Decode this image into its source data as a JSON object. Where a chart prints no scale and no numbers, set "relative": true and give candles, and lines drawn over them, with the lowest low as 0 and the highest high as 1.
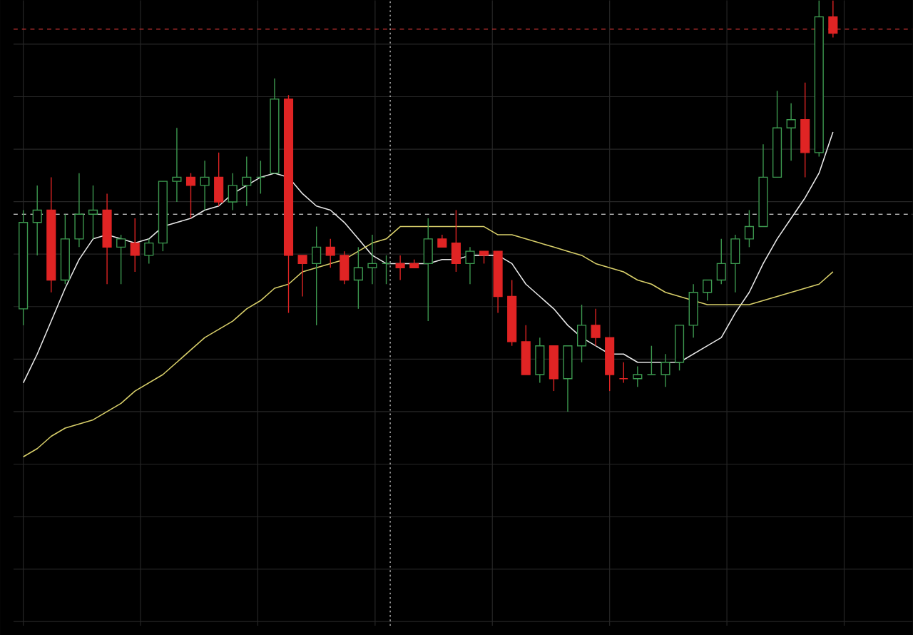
{
  "chart_data": {
    "type": "candlestick",
    "relative": true,
    "grid": true,
    "categories": [
      null,
      null,
      null,
      null,
      null,
      null,
      null,
      null,
      null,
      null,
      null,
      null,
      null,
      null,
      null,
      null,
      null,
      null,
      null,
      null,
      null,
      null,
      null,
      null,
      null,
      null,
      null,
      null,
      null,
      null,
      null,
      null,
      null,
      null,
      null,
      null,
      null,
      null,
      null,
      null,
      null,
      null,
      null,
      null,
      null,
      null,
      null,
      null,
      null,
      null,
      null,
      null,
      null,
      null,
      null,
      null,
      null,
      null,
      null
    ],
    "ohlc": [
      [
        0.25,
        0.49,
        0.21,
        0.46
      ],
      [
        0.46,
        0.55,
        0.38,
        0.49
      ],
      [
        0.49,
        0.57,
        0.29,
        0.32
      ],
      [
        0.32,
        0.48,
        0.31,
        0.42
      ],
      [
        0.42,
        0.58,
        0.4,
        0.48
      ],
      [
        0.48,
        0.55,
        0.42,
        0.49
      ],
      [
        0.49,
        0.53,
        0.31,
        0.4
      ],
      [
        0.4,
        0.43,
        0.31,
        0.42
      ],
      [
        0.41,
        0.47,
        0.34,
        0.38
      ],
      [
        0.38,
        0.42,
        0.36,
        0.41
      ],
      [
        0.41,
        0.56,
        0.39,
        0.56
      ],
      [
        0.56,
        0.69,
        0.51,
        0.57
      ],
      [
        0.57,
        0.58,
        0.47,
        0.55
      ],
      [
        0.55,
        0.61,
        0.49,
        0.57
      ],
      [
        0.57,
        0.63,
        0.5,
        0.51
      ],
      [
        0.51,
        0.58,
        0.49,
        0.55
      ],
      [
        0.55,
        0.62,
        0.5,
        0.57
      ],
      [
        0.57,
        0.61,
        0.53,
        0.57
      ],
      [
        0.58,
        0.81,
        0.58,
        0.76
      ],
      [
        0.76,
        0.77,
        0.24,
        0.38
      ],
      [
        0.38,
        0.38,
        0.28,
        0.36
      ],
      [
        0.36,
        0.45,
        0.21,
        0.4
      ],
      [
        0.4,
        0.42,
        0.35,
        0.38
      ],
      [
        0.38,
        0.39,
        0.31,
        0.32
      ],
      [
        0.32,
        0.4,
        0.25,
        0.35
      ],
      [
        0.35,
        0.43,
        0.31,
        0.36
      ],
      [
        0.36,
        0.38,
        0.31,
        0.36
      ],
      [
        0.36,
        0.38,
        0.32,
        0.35
      ],
      [
        0.36,
        0.37,
        0.35,
        0.35
      ],
      [
        0.36,
        0.47,
        0.22,
        0.42
      ],
      [
        0.42,
        0.43,
        0.4,
        0.4
      ],
      [
        0.41,
        0.49,
        0.34,
        0.36
      ],
      [
        0.36,
        0.4,
        0.31,
        0.39
      ],
      [
        0.39,
        0.39,
        0.36,
        0.38
      ],
      [
        0.39,
        0.39,
        0.24,
        0.28
      ],
      [
        0.28,
        0.32,
        0.16,
        0.17
      ],
      [
        0.17,
        0.21,
        0.09,
        0.09
      ],
      [
        0.09,
        0.18,
        0.07,
        0.16
      ],
      [
        0.16,
        0.16,
        0.05,
        0.08
      ],
      [
        0.08,
        0.16,
        0.0,
        0.16
      ],
      [
        0.16,
        0.26,
        0.12,
        0.21
      ],
      [
        0.21,
        0.25,
        0.16,
        0.18
      ],
      [
        0.18,
        0.18,
        0.05,
        0.09
      ],
      [
        0.08,
        0.12,
        0.07,
        0.08
      ],
      [
        0.08,
        0.11,
        0.06,
        0.09
      ],
      [
        0.09,
        0.16,
        0.09,
        0.09
      ],
      [
        0.09,
        0.14,
        0.06,
        0.12
      ],
      [
        0.12,
        0.21,
        0.1,
        0.21
      ],
      [
        0.21,
        0.31,
        0.18,
        0.29
      ],
      [
        0.29,
        0.32,
        0.27,
        0.32
      ],
      [
        0.32,
        0.42,
        0.31,
        0.36
      ],
      [
        0.36,
        0.43,
        0.29,
        0.42
      ],
      [
        0.42,
        0.49,
        0.4,
        0.45
      ],
      [
        0.45,
        0.65,
        0.45,
        0.57
      ],
      [
        0.57,
        0.78,
        0.57,
        0.69
      ],
      [
        0.69,
        0.75,
        0.61,
        0.71
      ],
      [
        0.71,
        0.8,
        0.57,
        0.63
      ],
      [
        0.63,
        1.0,
        0.62,
        0.96
      ],
      [
        0.96,
        1.0,
        0.91,
        0.92
      ]
    ],
    "colors": [
      "#3d9a50",
      "#3d9a50",
      "#e02424",
      "#3d9a50",
      "#3d9a50",
      "#3d9a50",
      "#e02424",
      "#3d9a50",
      "#e02424",
      "#3d9a50",
      "#3d9a50",
      "#3d9a50",
      "#e02424",
      "#3d9a50",
      "#e02424",
      "#3d9a50",
      "#3d9a50",
      "#3d9a50",
      "#3d9a50",
      "#e02424",
      "#e02424",
      "#3d9a50",
      "#e02424",
      "#e02424",
      "#3d9a50",
      "#3d9a50",
      "#3d9a50",
      "#e02424",
      "#e02424",
      "#3d9a50",
      "#e02424",
      "#e02424",
      "#3d9a50",
      "#e02424",
      "#e02424",
      "#e02424",
      "#e02424",
      "#3d9a50",
      "#e02424",
      "#3d9a50",
      "#3d9a50",
      "#e02424",
      "#e02424",
      "#e02424",
      "#3d9a50",
      "#3d9a50",
      "#3d9a50",
      "#3d9a50",
      "#3d9a50",
      "#3d9a50",
      "#3d9a50",
      "#3d9a50",
      "#3d9a50",
      "#3d9a50",
      "#3d9a50",
      "#3d9a50",
      "#e02424",
      "#3d9a50",
      "#e02424"
    ],
    "series": [
      {
        "type": "line",
        "color": "#e8e8e8",
        "values": [
          0.07,
          0.14,
          0.22,
          0.3,
          0.37,
          0.42,
          0.43,
          0.42,
          0.41,
          0.42,
          0.45,
          0.46,
          0.47,
          0.49,
          0.5,
          0.53,
          0.55,
          0.57,
          0.58,
          0.57,
          0.53,
          0.5,
          0.49,
          0.46,
          0.42,
          0.38,
          0.36,
          0.36,
          0.36,
          0.36,
          0.37,
          0.37,
          0.38,
          0.38,
          0.38,
          0.36,
          0.31,
          0.28,
          0.25,
          0.21,
          0.18,
          0.16,
          0.14,
          0.14,
          0.12,
          0.12,
          0.12,
          0.12,
          0.14,
          0.16,
          0.18,
          0.24,
          0.29,
          0.36,
          0.42,
          0.47,
          0.52,
          0.58,
          0.68
        ]
      },
      {
        "type": "line",
        "color": "#d8cf6a",
        "values": [
          -0.11,
          -0.09,
          -0.06,
          -0.04,
          -0.03,
          -0.02,
          0.0,
          0.02,
          0.05,
          0.07,
          0.09,
          0.12,
          0.15,
          0.18,
          0.2,
          0.22,
          0.25,
          0.27,
          0.3,
          0.31,
          0.34,
          0.35,
          0.36,
          0.37,
          0.39,
          0.41,
          0.42,
          0.45,
          0.45,
          0.45,
          0.45,
          0.45,
          0.45,
          0.45,
          0.43,
          0.43,
          0.42,
          0.41,
          0.4,
          0.39,
          0.38,
          0.36,
          0.35,
          0.34,
          0.32,
          0.31,
          0.29,
          0.28,
          0.27,
          0.26,
          0.26,
          0.26,
          0.26,
          0.27,
          0.28,
          0.29,
          0.3,
          0.31,
          0.34
        ]
      }
    ],
    "ref_lines": [
      {
        "axis": "y",
        "value": 0.48,
        "color": "#bbbbbb",
        "line_style": "dashed"
      },
      {
        "axis": "y",
        "value": 0.93,
        "color": "#c03030",
        "line_style": "dashed"
      }
    ]
  }
}
